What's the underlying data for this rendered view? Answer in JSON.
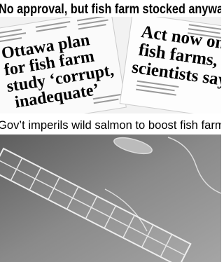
{
  "headlines": [
    {
      "lines": [
        "No approval, but fish farm stocked anyway"
      ]
    },
    {
      "lines": [
        "Ottawa plan",
        "for fish farm",
        "study ‘corrupt,",
        "inadequate’"
      ]
    },
    {
      "lines": [
        "Act now on",
        "fish farms,",
        "scientists say"
      ]
    },
    {
      "lines": [
        "Gov’t imperils wild salmon to boost fish farms"
      ]
    }
  ]
}
